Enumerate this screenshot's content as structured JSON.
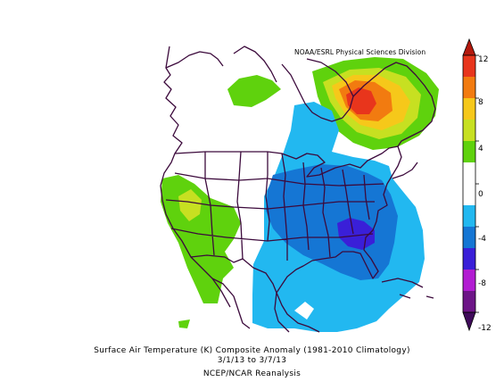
{
  "credit": "NOAA/ESRL Physical Sciences Division",
  "caption": {
    "line1": "Surface Air Temperature (K) Composite Anomaly (1981-2010 Climatology)",
    "line2": "3/1/13  to 3/7/13",
    "line3": "NCEP/NCAR Reanalysis"
  },
  "colorbar": {
    "ticks": [
      "12",
      "8",
      "4",
      "0",
      "-4",
      "-8",
      "-12"
    ],
    "colors": [
      "#e8351c",
      "#f27b10",
      "#f6c81a",
      "#c7e021",
      "#5fd20d",
      "#ffffff",
      "#ffffff",
      "#22b8f0",
      "#1576d4",
      "#3a1fd8",
      "#b21cd2",
      "#6d1587"
    ],
    "arrow_top": "#b4190d",
    "arrow_bottom": "#3f0a5a"
  },
  "colors": {
    "border": "#3c0a3c",
    "ocean": "#ffffff"
  }
}
